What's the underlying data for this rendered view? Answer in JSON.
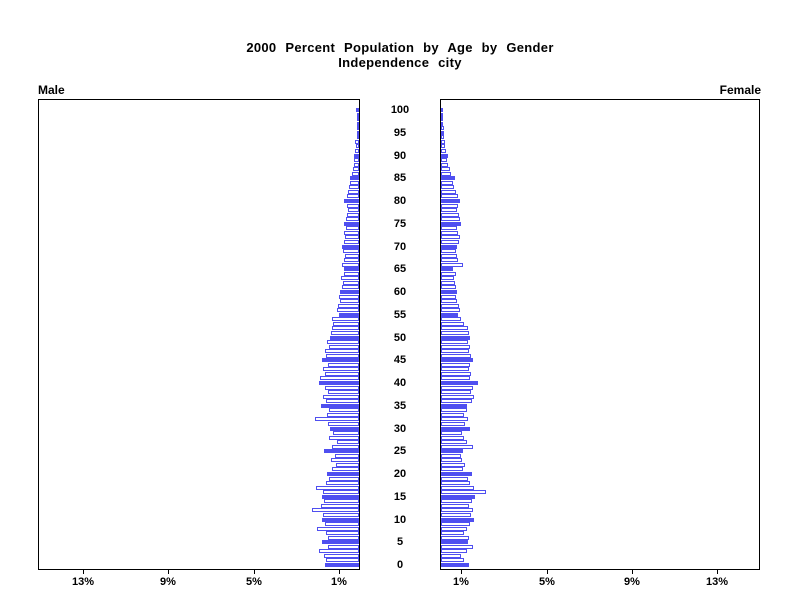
{
  "title": {
    "line1": "2000 Percent Population by Age by Gender",
    "line2": "Independence city"
  },
  "panel_labels": {
    "male": "Male",
    "female": "Female"
  },
  "colors": {
    "bar_blue": "#4f4ff0",
    "bar_empty_fill": "#ffffff",
    "axis_black": "#000000",
    "background": "#ffffff"
  },
  "chart_data": {
    "type": "bar",
    "subtype": "population-pyramid",
    "title": "2000 Percent Population by Age by Gender",
    "subtitle": "Independence city",
    "xlabel_left_side": "Male",
    "xlabel_right_side": "Female",
    "x_unit": "percent of population",
    "xlim_each_side": [
      0,
      15.1
    ],
    "x_tick_values": [
      1,
      5,
      9,
      13
    ],
    "x_tick_labels": [
      "1%",
      "5%",
      "9%",
      "13%"
    ],
    "age_min": 0,
    "age_max": 100,
    "age_label_step": 5,
    "age_tick_labels": [
      "0",
      "5",
      "10",
      "15",
      "20",
      "25",
      "30",
      "35",
      "40",
      "45",
      "50",
      "55",
      "60",
      "65",
      "70",
      "75",
      "80",
      "85",
      "90",
      "95",
      "100"
    ],
    "bar_fill_rule": "ages divisible by 5 are solid blue; other ages are white with blue outline",
    "series": [
      {
        "name": "Male",
        "side": "left",
        "values_by_single_year_of_age_pct": [
          1.6,
          1.55,
          1.65,
          1.9,
          1.45,
          1.75,
          1.45,
          1.55,
          1.95,
          1.6,
          1.75,
          1.7,
          2.2,
          1.8,
          1.65,
          1.75,
          1.7,
          2.0,
          1.55,
          1.4,
          1.5,
          1.25,
          1.1,
          1.3,
          1.15,
          1.65,
          1.25,
          1.05,
          1.4,
          1.2,
          1.35,
          1.45,
          2.05,
          1.5,
          1.4,
          1.8,
          1.55,
          1.7,
          1.45,
          1.6,
          1.9,
          1.85,
          1.6,
          1.7,
          1.45,
          1.75,
          1.55,
          1.6,
          1.4,
          1.5,
          1.35,
          1.3,
          1.25,
          1.2,
          1.25,
          0.95,
          1.05,
          1.0,
          0.9,
          0.95,
          0.9,
          0.8,
          0.75,
          0.85,
          0.7,
          0.7,
          0.8,
          0.7,
          0.65,
          0.75,
          0.8,
          0.7,
          0.65,
          0.7,
          0.6,
          0.7,
          0.6,
          0.55,
          0.5,
          0.55,
          0.7,
          0.55,
          0.5,
          0.45,
          0.4,
          0.4,
          0.35,
          0.3,
          0.25,
          0.25,
          0.25,
          0.2,
          0.15,
          0.2,
          0.1,
          0.1,
          0.1,
          0.05,
          0.05,
          0.05,
          0.15
        ]
      },
      {
        "name": "Female",
        "side": "right",
        "values_by_single_year_of_age_pct": [
          1.3,
          1.1,
          0.95,
          1.2,
          1.5,
          1.25,
          1.3,
          1.1,
          1.2,
          1.35,
          1.55,
          1.4,
          1.5,
          1.3,
          1.45,
          1.6,
          2.1,
          1.55,
          1.35,
          1.25,
          1.45,
          1.05,
          1.15,
          1.0,
          0.95,
          1.05,
          1.5,
          1.2,
          1.1,
          1.0,
          1.35,
          1.15,
          1.25,
          1.1,
          1.2,
          1.2,
          1.45,
          1.55,
          1.4,
          1.5,
          1.75,
          1.35,
          1.4,
          1.3,
          1.35,
          1.5,
          1.4,
          1.3,
          1.35,
          1.25,
          1.37,
          1.3,
          1.25,
          1.1,
          0.95,
          0.82,
          0.9,
          0.85,
          0.75,
          0.7,
          0.75,
          0.7,
          0.65,
          0.6,
          0.7,
          0.55,
          1.05,
          0.8,
          0.75,
          0.7,
          0.75,
          0.85,
          0.9,
          0.8,
          0.75,
          0.95,
          0.9,
          0.85,
          0.75,
          0.8,
          0.88,
          0.8,
          0.7,
          0.6,
          0.55,
          0.65,
          0.45,
          0.4,
          0.35,
          0.3,
          0.33,
          0.25,
          0.2,
          0.2,
          0.15,
          0.15,
          0.15,
          0.1,
          0.05,
          0.05,
          0.05
        ]
      }
    ]
  }
}
